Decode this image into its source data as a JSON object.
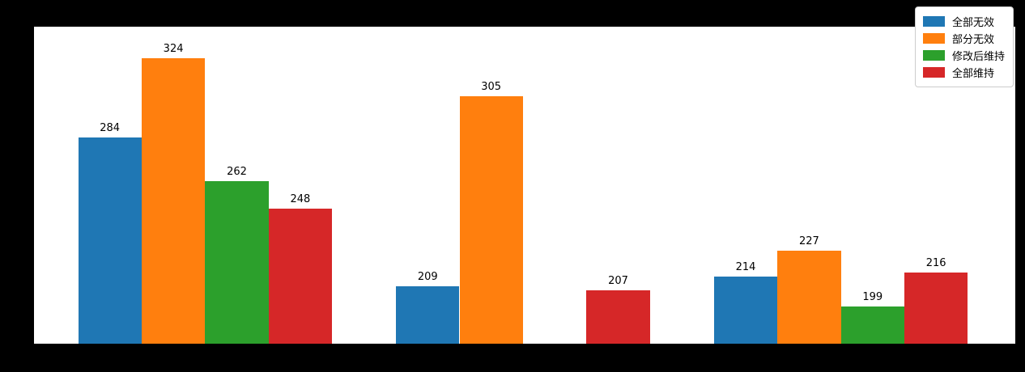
{
  "chart_data": {
    "type": "bar",
    "categories": [
      "",
      "",
      ""
    ],
    "series": [
      {
        "name": "全部无效",
        "color": "#1f77b4",
        "values": [
          284,
          209,
          214
        ]
      },
      {
        "name": "部分无效",
        "color": "#ff7f0e",
        "values": [
          324,
          305,
          227
        ]
      },
      {
        "name": "修改后维持",
        "color": "#2ca02c",
        "values": [
          262,
          null,
          199
        ]
      },
      {
        "name": "全部维持",
        "color": "#d62728",
        "values": [
          248,
          207,
          216
        ]
      }
    ],
    "title": "",
    "xlabel": "",
    "ylabel": "",
    "ylim": [
      180,
      340
    ],
    "grid": false,
    "bar_value_labels_shown": true,
    "legend_position": "upper right",
    "colors": {
      "figure_background": "#000000",
      "axes_background": "#ffffff",
      "label_text": "#000000",
      "legend_border": "#cccccc",
      "legend_background": "#ffffff"
    }
  }
}
